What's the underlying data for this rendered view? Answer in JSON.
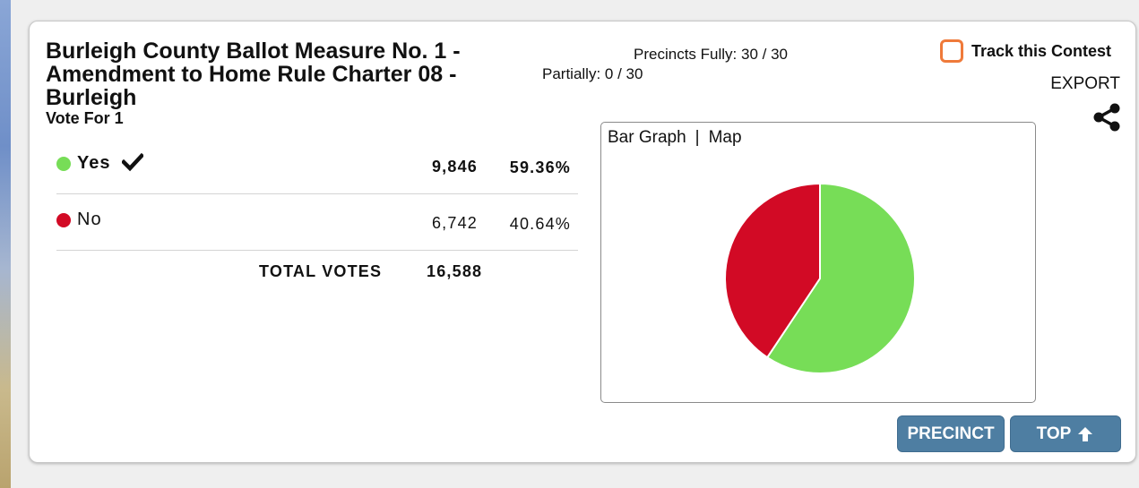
{
  "contest": {
    "title": "Burleigh County Ballot Measure No. 1 - Amendment to Home Rule Charter 08 - Burleigh",
    "vote_for": "Vote For 1"
  },
  "precincts": {
    "fully": "Precincts Fully: 30 / 30",
    "partially": "Partially: 0 / 30"
  },
  "track": {
    "label": "Track this Contest",
    "checked": false,
    "color": "#ef7a3a"
  },
  "export_label": "EXPORT",
  "share_icon": "share-icon",
  "candidates": [
    {
      "name": "Yes",
      "votes": "9,846",
      "percent": "59.36%",
      "winner": true,
      "color": "#77dd57"
    },
    {
      "name": "No",
      "votes": "6,742",
      "percent": "40.64%",
      "winner": false,
      "color": "#d20a25"
    }
  ],
  "total": {
    "label": "TOTAL VOTES",
    "value": "16,588"
  },
  "graph_tabs": {
    "bar": "Bar Graph",
    "separator": "|",
    "map": "Map"
  },
  "chart_data": {
    "type": "pie",
    "categories": [
      "Yes",
      "No"
    ],
    "values": [
      59.36,
      40.64
    ],
    "colors": [
      "#77dd57",
      "#d20a25"
    ]
  },
  "buttons": {
    "precinct": "PRECINCT",
    "top": "TOP"
  },
  "colors": {
    "button_bg": "#4e7ea2",
    "yes": "#77dd57",
    "no": "#d20a25"
  }
}
